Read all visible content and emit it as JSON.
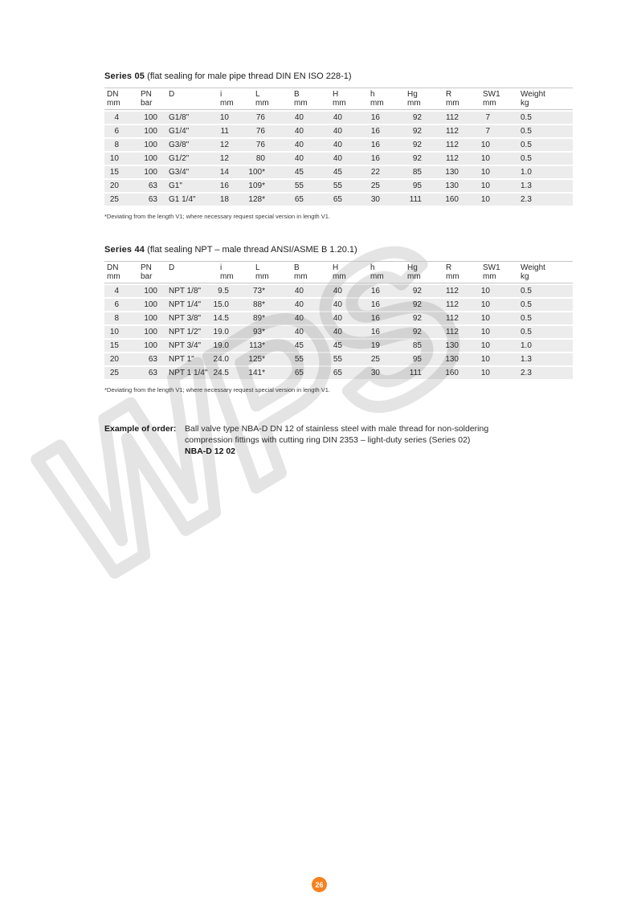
{
  "page": {
    "number": "26",
    "watermark": "WPS",
    "accent_color": "#f58220",
    "watermark_color": "#e4e4e4",
    "row_stripe_color": "#ececec",
    "rule_color": "#c6c6c6"
  },
  "tables": [
    {
      "title_bold": "Series 05",
      "title_rest": " (flat sealing for male pipe thread DIN EN ISO 228-1)",
      "columns": [
        {
          "label": "DN",
          "unit": "mm"
        },
        {
          "label": "PN",
          "unit": "bar"
        },
        {
          "label": "D",
          "unit": ""
        },
        {
          "label": "i",
          "unit": "mm"
        },
        {
          "label": "L",
          "unit": "mm"
        },
        {
          "label": "B",
          "unit": "mm"
        },
        {
          "label": "H",
          "unit": "mm"
        },
        {
          "label": "h",
          "unit": "mm"
        },
        {
          "label": "Hg",
          "unit": "mm"
        },
        {
          "label": "R",
          "unit": "mm"
        },
        {
          "label": "SW1",
          "unit": "mm"
        },
        {
          "label": "Weight",
          "unit": "kg"
        }
      ],
      "rows": [
        [
          "4",
          "100",
          "G1/8\"",
          "10",
          "76",
          "40",
          "40",
          "16",
          "92",
          "112",
          "7",
          "0.5"
        ],
        [
          "6",
          "100",
          "G1/4\"",
          "11",
          "76",
          "40",
          "40",
          "16",
          "92",
          "112",
          "7",
          "0.5"
        ],
        [
          "8",
          "100",
          "G3/8\"",
          "12",
          "76",
          "40",
          "40",
          "16",
          "92",
          "112",
          "10",
          "0.5"
        ],
        [
          "10",
          "100",
          "G1/2\"",
          "12",
          "80",
          "40",
          "40",
          "16",
          "92",
          "112",
          "10",
          "0.5"
        ],
        [
          "15",
          "100",
          "G3/4\"",
          "14",
          "100*",
          "45",
          "45",
          "22",
          "85",
          "130",
          "10",
          "1.0"
        ],
        [
          "20",
          "63",
          "G1\"",
          "16",
          "109*",
          "55",
          "55",
          "25",
          "95",
          "130",
          "10",
          "1.3"
        ],
        [
          "25",
          "63",
          "G1 1/4\"",
          "18",
          "128*",
          "65",
          "65",
          "30",
          "111",
          "160",
          "10",
          "2.3"
        ]
      ],
      "footnote": "*Deviating from the length V1; where necessary request special version in length V1."
    },
    {
      "title_bold": "Series 44",
      "title_rest": " (flat sealing NPT – male thread ANSI/ASME B 1.20.1)",
      "columns": [
        {
          "label": "DN",
          "unit": "mm"
        },
        {
          "label": "PN",
          "unit": "bar"
        },
        {
          "label": "D",
          "unit": ""
        },
        {
          "label": "i",
          "unit": "mm"
        },
        {
          "label": "L",
          "unit": "mm"
        },
        {
          "label": "B",
          "unit": "mm"
        },
        {
          "label": "H",
          "unit": "mm"
        },
        {
          "label": "h",
          "unit": "mm"
        },
        {
          "label": "Hg",
          "unit": "mm"
        },
        {
          "label": "R",
          "unit": "mm"
        },
        {
          "label": "SW1",
          "unit": "mm"
        },
        {
          "label": "Weight",
          "unit": "kg"
        }
      ],
      "rows": [
        [
          "4",
          "100",
          "NPT 1/8\"",
          "9.5",
          "73*",
          "40",
          "40",
          "16",
          "92",
          "112",
          "10",
          "0.5"
        ],
        [
          "6",
          "100",
          "NPT 1/4\"",
          "15.0",
          "88*",
          "40",
          "40",
          "16",
          "92",
          "112",
          "10",
          "0.5"
        ],
        [
          "8",
          "100",
          "NPT 3/8\"",
          "14.5",
          "89*",
          "40",
          "40",
          "16",
          "92",
          "112",
          "10",
          "0.5"
        ],
        [
          "10",
          "100",
          "NPT 1/2\"",
          "19.0",
          "93*",
          "40",
          "40",
          "16",
          "92",
          "112",
          "10",
          "0.5"
        ],
        [
          "15",
          "100",
          "NPT 3/4\"",
          "19.0",
          "113*",
          "45",
          "45",
          "19",
          "85",
          "130",
          "10",
          "1.0"
        ],
        [
          "20",
          "63",
          "NPT 1\"",
          "24.0",
          "125*",
          "55",
          "55",
          "25",
          "95",
          "130",
          "10",
          "1.3"
        ],
        [
          "25",
          "63",
          "NPT 1 1/4\"",
          "24.5",
          "141*",
          "65",
          "65",
          "30",
          "111",
          "160",
          "10",
          "2.3"
        ]
      ],
      "footnote": "*Deviating from the length V1; where necessary request special version in length V1."
    }
  ],
  "order_example": {
    "label": "Example of order:",
    "line1": "Ball valve type NBA-D DN 12 of stainless steel with male thread for non-soldering",
    "line2": "compression fittings with cutting ring DIN 2353 – light-duty series (Series 02)",
    "code": "NBA-D 12 02"
  }
}
